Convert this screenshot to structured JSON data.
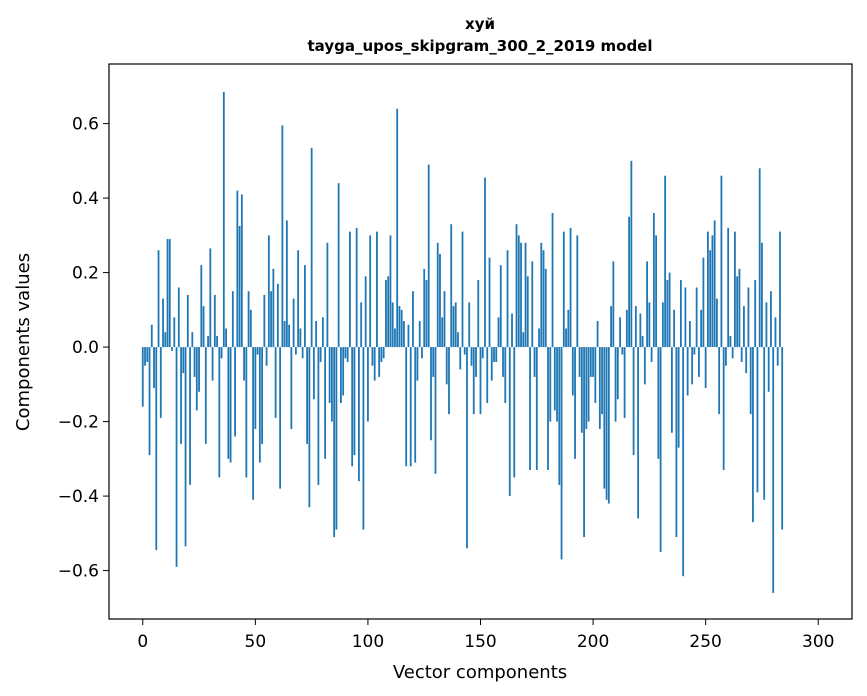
{
  "chart_data": {
    "type": "bar",
    "title": "хуй",
    "subtitle": "tayga_upos_skipgram_300_2_2019 model",
    "xlabel": "Vector components",
    "ylabel": "Components values",
    "xlim": [
      -15,
      315
    ],
    "ylim": [
      -0.73,
      0.76
    ],
    "x_ticks": [
      0,
      50,
      100,
      150,
      200,
      250,
      300
    ],
    "y_ticks": [
      -0.6,
      -0.4,
      -0.2,
      0.0,
      0.2,
      0.4,
      0.6
    ],
    "x_tick_labels": [
      "0",
      "50",
      "100",
      "150",
      "200",
      "250",
      "300"
    ],
    "y_tick_labels": [
      "−0.6",
      "−0.4",
      "−0.2",
      "0.0",
      "0.2",
      "0.4",
      "0.6"
    ],
    "grid": false,
    "bar_color": "#1f77b4",
    "values": [
      -0.16,
      -0.05,
      -0.04,
      -0.29,
      0.06,
      -0.11,
      -0.545,
      0.26,
      -0.19,
      0.13,
      0.04,
      0.29,
      0.29,
      -0.01,
      0.08,
      -0.59,
      0.16,
      -0.26,
      -0.07,
      -0.535,
      0.14,
      -0.37,
      0.04,
      -0.08,
      -0.17,
      -0.12,
      0.22,
      0.11,
      -0.26,
      0.03,
      0.265,
      -0.09,
      0.14,
      0.03,
      -0.35,
      -0.03,
      0.685,
      0.05,
      -0.3,
      -0.31,
      0.15,
      -0.24,
      0.42,
      0.325,
      0.41,
      -0.09,
      -0.35,
      0.15,
      0.1,
      -0.41,
      -0.22,
      -0.02,
      -0.31,
      -0.26,
      0.14,
      -0.05,
      0.3,
      0.15,
      0.21,
      -0.19,
      0.17,
      -0.38,
      0.595,
      0.07,
      0.34,
      0.06,
      -0.22,
      0.13,
      -0.02,
      0.26,
      0.05,
      -0.03,
      0.22,
      -0.26,
      -0.43,
      0.535,
      -0.14,
      0.07,
      -0.37,
      -0.04,
      0.08,
      -0.3,
      0.28,
      -0.15,
      -0.2,
      -0.51,
      -0.49,
      0.44,
      -0.15,
      -0.13,
      -0.03,
      -0.04,
      0.31,
      -0.32,
      -0.29,
      0.32,
      -0.36,
      0.12,
      -0.49,
      0.19,
      -0.2,
      0.3,
      -0.05,
      -0.09,
      0.31,
      -0.08,
      -0.04,
      -0.03,
      0.18,
      0.19,
      0.3,
      0.12,
      0.05,
      0.64,
      0.11,
      0.1,
      0.07,
      -0.32,
      0.06,
      -0.32,
      0.15,
      -0.31,
      -0.09,
      0.07,
      -0.03,
      0.21,
      0.18,
      0.49,
      -0.25,
      -0.08,
      -0.34,
      0.28,
      0.25,
      0.08,
      0.15,
      -0.1,
      -0.18,
      0.33,
      0.11,
      0.12,
      0.04,
      -0.06,
      0.31,
      -0.02,
      -0.54,
      0.12,
      -0.05,
      -0.18,
      -0.08,
      0.18,
      -0.18,
      -0.03,
      0.455,
      -0.15,
      0.24,
      -0.09,
      -0.04,
      -0.04,
      0.08,
      0.22,
      -0.08,
      -0.15,
      0.26,
      -0.4,
      0.09,
      -0.35,
      0.33,
      0.3,
      0.28,
      0.04,
      0.28,
      0.19,
      -0.33,
      0.23,
      -0.08,
      -0.33,
      0.05,
      0.28,
      0.26,
      0.21,
      -0.33,
      -0.2,
      0.36,
      -0.17,
      -0.2,
      -0.37,
      -0.57,
      0.31,
      0.05,
      0.1,
      0.32,
      -0.13,
      -0.3,
      0.3,
      -0.08,
      -0.23,
      -0.51,
      -0.22,
      -0.2,
      -0.08,
      -0.08,
      -0.15,
      0.07,
      -0.22,
      -0.18,
      -0.38,
      -0.41,
      -0.42,
      0.11,
      0.23,
      -0.2,
      -0.14,
      0.08,
      -0.02,
      -0.19,
      0.1,
      0.35,
      0.5,
      -0.29,
      0.11,
      -0.46,
      0.09,
      0.03,
      -0.1,
      0.23,
      0.12,
      -0.04,
      0.36,
      0.3,
      -0.3,
      -0.55,
      0.12,
      0.46,
      0.18,
      0.2,
      -0.23,
      0.1,
      -0.51,
      -0.27,
      0.18,
      -0.615,
      0.16,
      -0.13,
      0.07,
      -0.1,
      -0.02,
      0.16,
      -0.08,
      0.1,
      0.24,
      -0.11,
      0.31,
      0.26,
      0.3,
      0.34,
      0.13,
      -0.18,
      0.46,
      -0.33,
      -0.05,
      0.32,
      0.03,
      -0.03,
      0.31,
      0.19,
      0.21,
      -0.04,
      0.11,
      -0.07,
      0.16,
      -0.18,
      -0.47,
      0.18,
      -0.39,
      0.48,
      0.28,
      -0.41,
      0.12,
      -0.12,
      0.15,
      -0.66,
      0.08,
      -0.05,
      0.31,
      -0.49
    ]
  }
}
